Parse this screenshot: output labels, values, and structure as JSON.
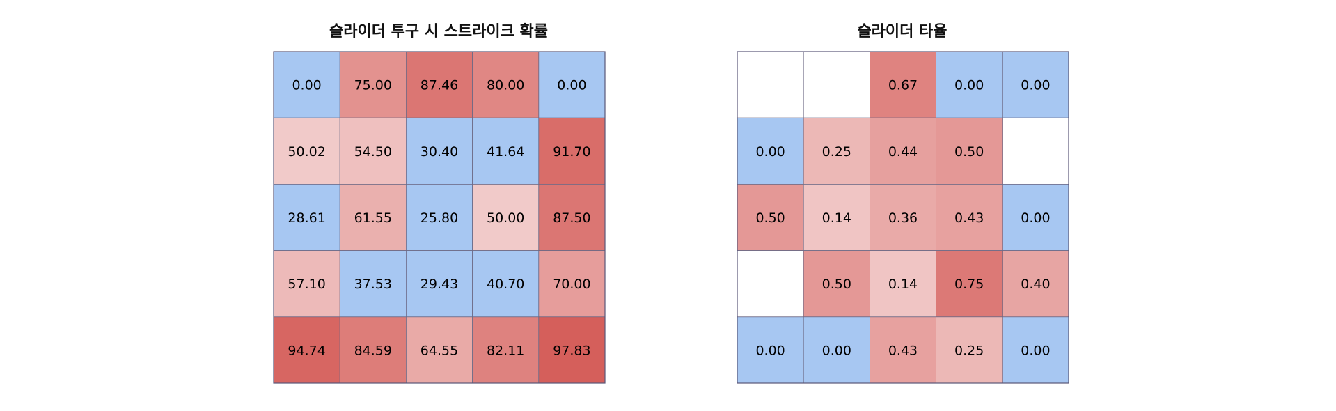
{
  "colors": {
    "low": "#a7c7f2",
    "mid": "#ffffff",
    "high": "#d45a56",
    "empty": "#ffffff",
    "cell_border": "#6d6a86",
    "frame_border": "#5a5778"
  },
  "chart_data": [
    {
      "type": "heatmap",
      "title": "슬라이더 투구 시 스트라이크 확률",
      "rows": 5,
      "cols": 5,
      "value_format": "2 decimals",
      "color_scale": {
        "low_threshold": 50,
        "max": 100
      },
      "values": [
        [
          0.0,
          75.0,
          87.46,
          80.0,
          0.0
        ],
        [
          50.02,
          54.5,
          30.4,
          41.64,
          91.7
        ],
        [
          28.61,
          61.55,
          25.8,
          50.0,
          87.5
        ],
        [
          57.1,
          37.53,
          29.43,
          40.7,
          70.0
        ],
        [
          94.74,
          84.59,
          64.55,
          82.11,
          97.83
        ]
      ]
    },
    {
      "type": "heatmap",
      "title": "슬라이더 타율",
      "rows": 5,
      "cols": 5,
      "value_format": "2 decimals",
      "color_scale": {
        "low_threshold": 0.1,
        "max": 1.0
      },
      "values": [
        [
          null,
          null,
          0.67,
          0.0,
          0.0
        ],
        [
          0.0,
          0.25,
          0.44,
          0.5,
          null
        ],
        [
          0.5,
          0.14,
          0.36,
          0.43,
          0.0
        ],
        [
          null,
          0.5,
          0.14,
          0.75,
          0.4
        ],
        [
          0.0,
          0.0,
          0.43,
          0.25,
          0.0
        ]
      ]
    }
  ]
}
